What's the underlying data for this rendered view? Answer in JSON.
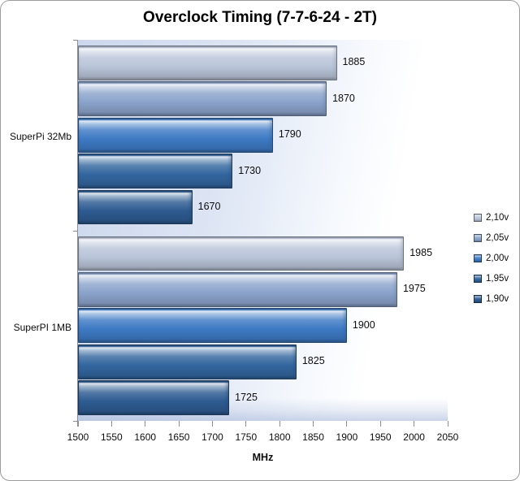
{
  "chart_data": {
    "type": "bar",
    "orientation": "horizontal",
    "title": "Overclock Timing (7-7-6-24 - 2T)",
    "xlabel": "MHz",
    "categories": [
      "SuperPi 32Mb",
      "SuperPI 1MB"
    ],
    "series": [
      {
        "name": "2,10v",
        "color": "#bac5d9",
        "values": [
          1885,
          1985
        ]
      },
      {
        "name": "2,05v",
        "color": "#8ba3cb",
        "values": [
          1870,
          1975
        ]
      },
      {
        "name": "2,00v",
        "color": "#3e7ac4",
        "values": [
          1790,
          1900
        ]
      },
      {
        "name": "1,95v",
        "color": "#33669f",
        "values": [
          1730,
          1825
        ]
      },
      {
        "name": "1,90v",
        "color": "#2e5c92",
        "values": [
          1670,
          1725
        ]
      }
    ],
    "x_ticks": [
      1500,
      1550,
      1600,
      1650,
      1700,
      1750,
      1800,
      1850,
      1900,
      1950,
      2000,
      2050
    ],
    "xlim": [
      1500,
      2050
    ],
    "grid": false,
    "legend_position": "right",
    "data_labels": true,
    "axis_color": "#8f8f8f",
    "text_color": "#0d0d0d"
  }
}
